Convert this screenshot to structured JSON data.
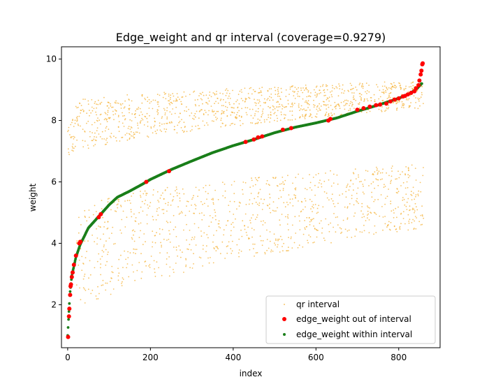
{
  "chart_data": {
    "type": "scatter",
    "title": "Edge_weight and qr interval (coverage=0.9279)",
    "xlabel": "index",
    "ylabel": "weight",
    "xlim": [
      -15,
      900
    ],
    "ylim": [
      0.6,
      10.4
    ],
    "xticks": [
      0,
      200,
      400,
      600,
      800
    ],
    "yticks": [
      2,
      4,
      6,
      8,
      10
    ],
    "legend_position": "bottom-right",
    "n_points": 860,
    "series": [
      {
        "name": "qr interval",
        "marker": "small dot",
        "color": "#f5b43c",
        "bands": [
          {
            "x": [
              0,
              860
            ],
            "y_from": [
              6.8,
              8.6
            ],
            "y_to": [
              8.4,
              9.3
            ],
            "count": 1100
          },
          {
            "x": [
              20,
              860
            ],
            "y_from": [
              1.6,
              5.2
            ],
            "y_to": [
              4.5,
              6.6
            ],
            "count": 1000
          }
        ]
      },
      {
        "name": "edge_weight out of interval",
        "marker": "circle",
        "color": "#ff0000",
        "points": [
          [
            1,
            0.95
          ],
          [
            3,
            1.62
          ],
          [
            4,
            1.87
          ],
          [
            6,
            2.32
          ],
          [
            7,
            2.6
          ],
          [
            8,
            2.66
          ],
          [
            10,
            2.9
          ],
          [
            12,
            3.05
          ],
          [
            15,
            3.3
          ],
          [
            20,
            3.6
          ],
          [
            28,
            4.0
          ],
          [
            31,
            4.05
          ],
          [
            75,
            4.85
          ],
          [
            80,
            4.95
          ],
          [
            190,
            6.0
          ],
          [
            245,
            6.35
          ],
          [
            430,
            7.3
          ],
          [
            450,
            7.38
          ],
          [
            460,
            7.45
          ],
          [
            470,
            7.48
          ],
          [
            520,
            7.7
          ],
          [
            540,
            7.75
          ],
          [
            630,
            8.0
          ],
          [
            635,
            8.05
          ],
          [
            700,
            8.35
          ],
          [
            715,
            8.4
          ],
          [
            730,
            8.45
          ],
          [
            745,
            8.5
          ],
          [
            755,
            8.52
          ],
          [
            770,
            8.55
          ],
          [
            780,
            8.62
          ],
          [
            790,
            8.68
          ],
          [
            800,
            8.72
          ],
          [
            810,
            8.78
          ],
          [
            815,
            8.8
          ],
          [
            822,
            8.85
          ],
          [
            830,
            8.9
          ],
          [
            838,
            8.95
          ],
          [
            842,
            9.05
          ],
          [
            848,
            9.15
          ],
          [
            850,
            9.3
          ],
          [
            853,
            9.5
          ],
          [
            855,
            9.62
          ],
          [
            857,
            9.83
          ],
          [
            858,
            9.86
          ]
        ]
      },
      {
        "name": "edge_weight within interval",
        "marker": "small circle",
        "color": "#1a7f1a",
        "curve": [
          [
            0,
            1.0
          ],
          [
            5,
            2.3
          ],
          [
            10,
            2.95
          ],
          [
            20,
            3.55
          ],
          [
            30,
            3.95
          ],
          [
            50,
            4.5
          ],
          [
            80,
            4.95
          ],
          [
            100,
            5.25
          ],
          [
            120,
            5.5
          ],
          [
            150,
            5.7
          ],
          [
            180,
            5.92
          ],
          [
            200,
            6.08
          ],
          [
            250,
            6.4
          ],
          [
            300,
            6.68
          ],
          [
            350,
            6.95
          ],
          [
            400,
            7.18
          ],
          [
            450,
            7.38
          ],
          [
            500,
            7.6
          ],
          [
            550,
            7.78
          ],
          [
            600,
            7.92
          ],
          [
            650,
            8.08
          ],
          [
            700,
            8.3
          ],
          [
            750,
            8.5
          ],
          [
            800,
            8.72
          ],
          [
            830,
            8.9
          ],
          [
            845,
            9.05
          ],
          [
            855,
            9.2
          ]
        ]
      }
    ]
  }
}
